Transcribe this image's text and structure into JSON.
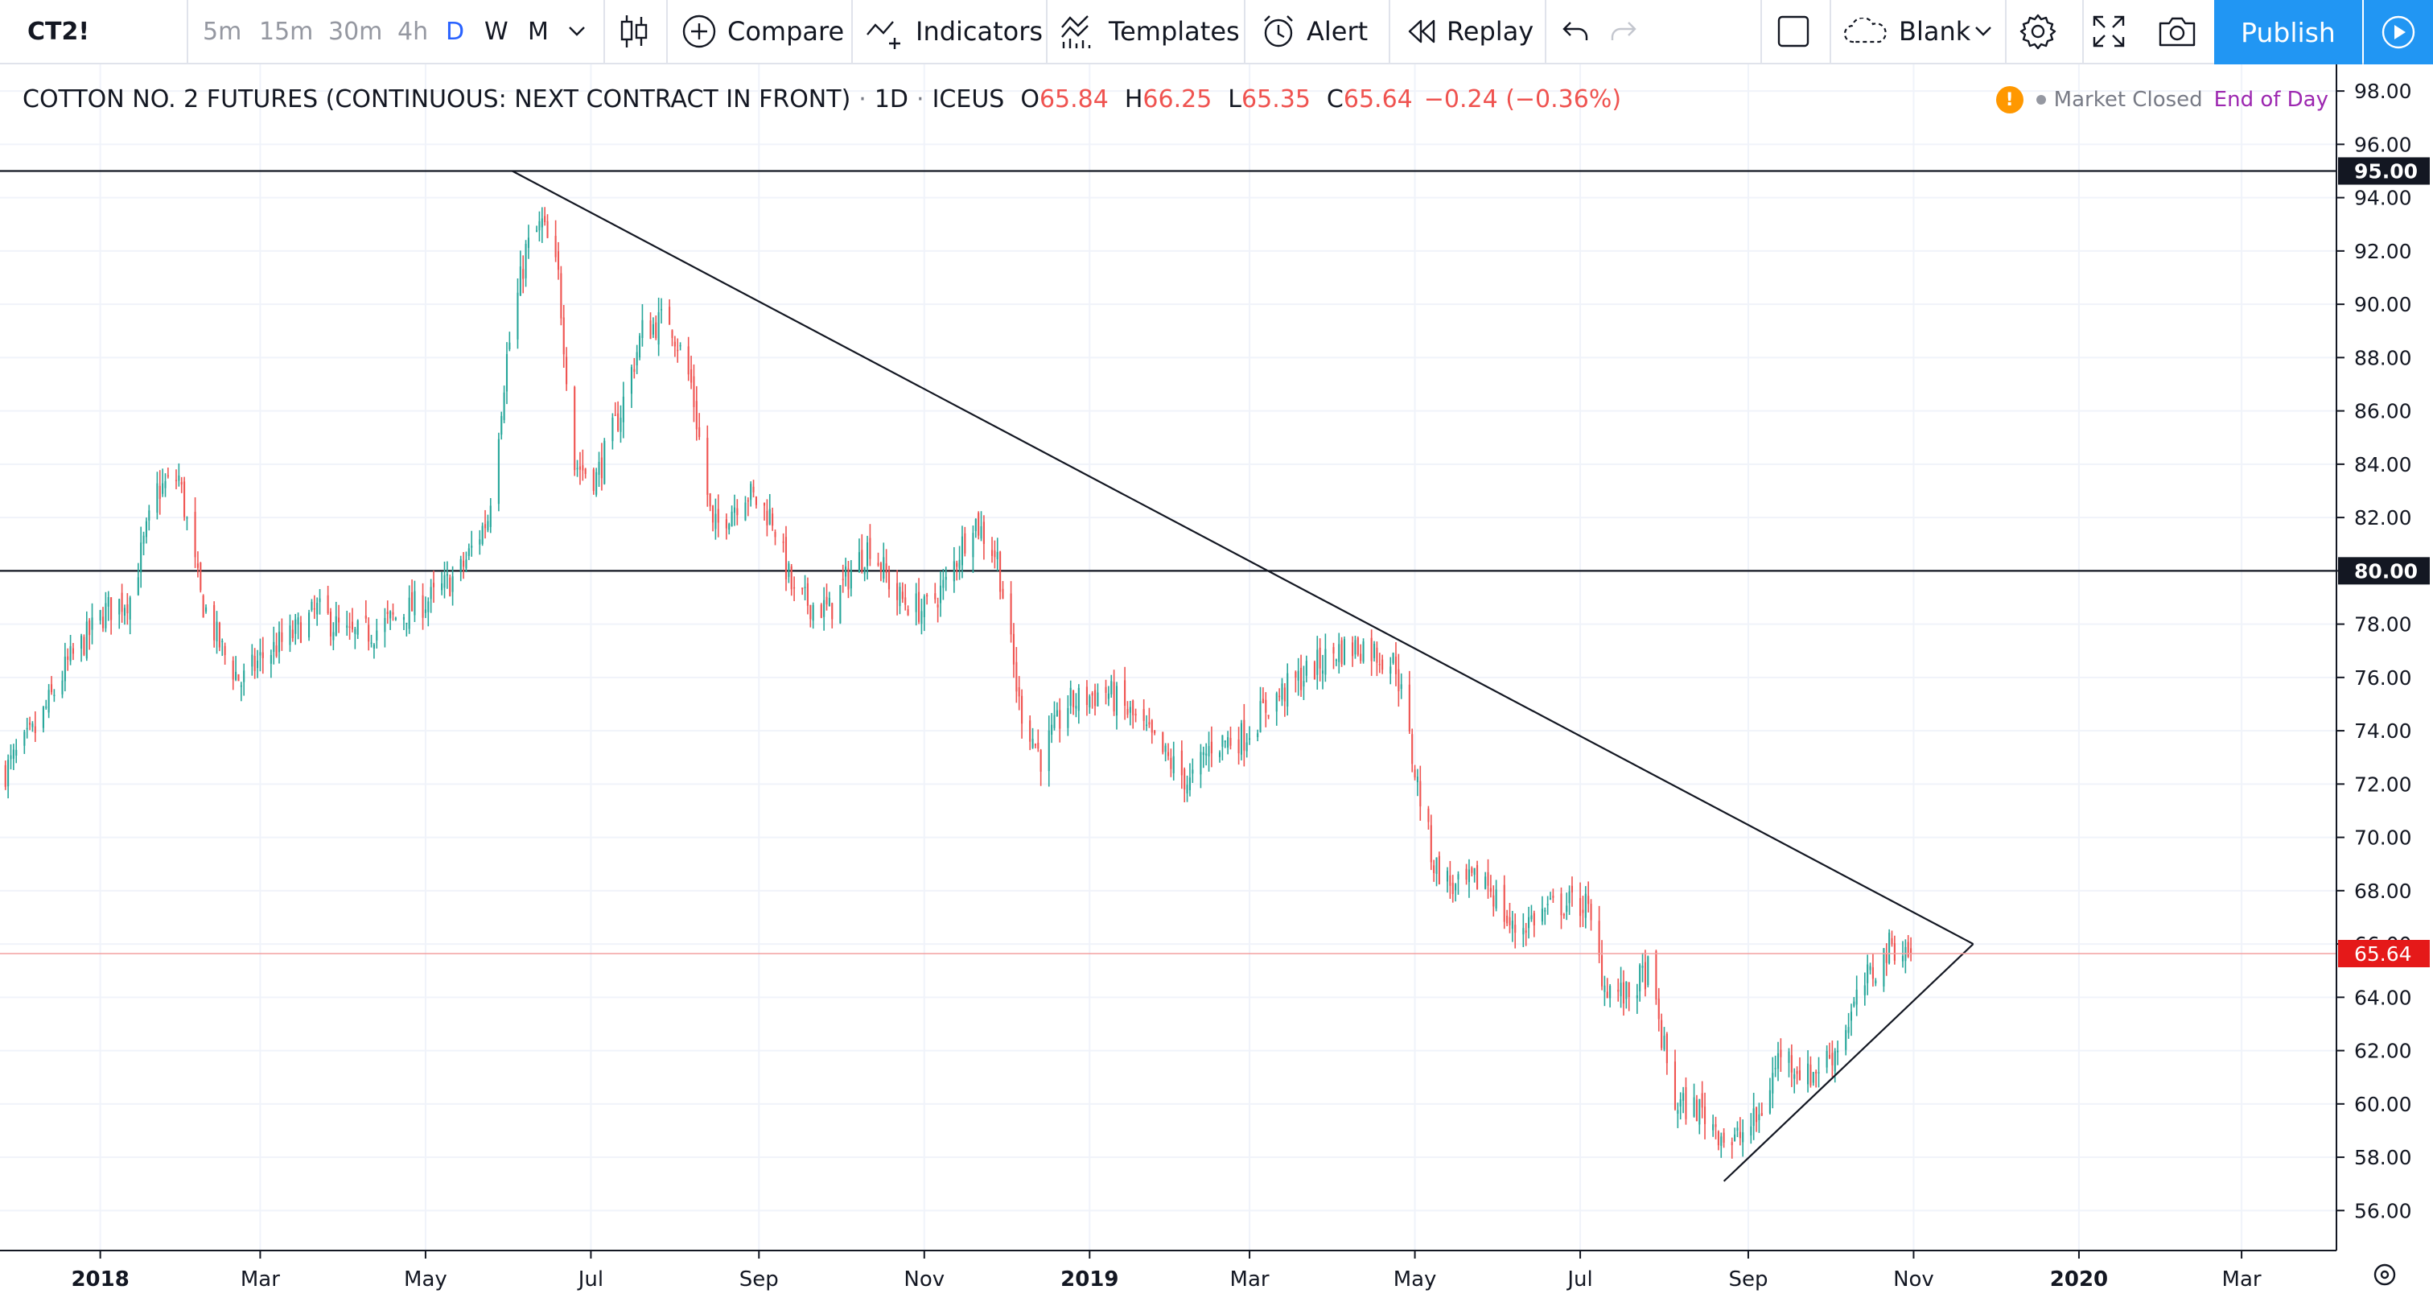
{
  "toolbar": {
    "symbol": "CT2!",
    "intervals": [
      "5m",
      "15m",
      "30m",
      "4h",
      "D",
      "W",
      "M"
    ],
    "compare_label": "Compare",
    "indicators_label": "Indicators",
    "templates_label": "Templates",
    "alert_label": "Alert",
    "replay_label": "Replay",
    "layout_label": "Blank",
    "publish_label": "Publish"
  },
  "legend": {
    "title": "COTTON NO. 2 FUTURES (CONTINUOUS: NEXT CONTRACT IN FRONT)",
    "interval": "1D",
    "exchange": "ICEUS",
    "open_key": "O",
    "open": "65.84",
    "high_key": "H",
    "high": "66.25",
    "low_key": "L",
    "low": "65.35",
    "close_key": "C",
    "close": "65.64",
    "change": "−0.24 (−0.36%)"
  },
  "status": {
    "warning": "!",
    "market": "Market Closed",
    "session": "End of Day"
  },
  "colors": {
    "up": "#26a69a",
    "down": "#ef5350",
    "accent": "#2196f3",
    "last_price_line": "#f3a0a0"
  },
  "chart_data": {
    "type": "candlestick",
    "symbol": "CT2!",
    "ylim": [
      54.5,
      99.0
    ],
    "y_ticks": [
      "56.00",
      "58.00",
      "60.00",
      "62.00",
      "64.00",
      "66.00",
      "68.00",
      "70.00",
      "72.00",
      "74.00",
      "76.00",
      "78.00",
      "80.00",
      "82.00",
      "84.00",
      "86.00",
      "88.00",
      "90.00",
      "92.00",
      "94.00",
      "96.00",
      "98.00"
    ],
    "x_ticks": [
      {
        "label": "2018",
        "date": "2018-01-01"
      },
      {
        "label": "Mar",
        "date": "2018-03-01"
      },
      {
        "label": "May",
        "date": "2018-05-01"
      },
      {
        "label": "Jul",
        "date": "2018-07-01"
      },
      {
        "label": "Sep",
        "date": "2018-09-01"
      },
      {
        "label": "Nov",
        "date": "2018-11-01"
      },
      {
        "label": "2019",
        "date": "2019-01-01"
      },
      {
        "label": "Mar",
        "date": "2019-03-01"
      },
      {
        "label": "May",
        "date": "2019-05-01"
      },
      {
        "label": "Jul",
        "date": "2019-07-01"
      },
      {
        "label": "Sep",
        "date": "2019-09-01"
      },
      {
        "label": "Nov",
        "date": "2019-11-01"
      },
      {
        "label": "2020",
        "date": "2020-01-01"
      },
      {
        "label": "Mar",
        "date": "2020-03-01"
      }
    ],
    "x_range": [
      "2017-11-25",
      "2020-04-05"
    ],
    "close_path": [
      [
        "2017-11-27",
        72.5
      ],
      [
        "2017-12-08",
        74.0
      ],
      [
        "2017-12-20",
        76.5
      ],
      [
        "2018-01-03",
        78.5
      ],
      [
        "2018-01-12",
        79.0
      ],
      [
        "2018-01-22",
        83.0
      ],
      [
        "2018-01-30",
        83.5
      ],
      [
        "2018-02-07",
        79.0
      ],
      [
        "2018-02-15",
        77.0
      ],
      [
        "2018-02-22",
        75.8
      ],
      [
        "2018-03-02",
        76.8
      ],
      [
        "2018-03-12",
        77.5
      ],
      [
        "2018-03-22",
        78.5
      ],
      [
        "2018-04-03",
        77.5
      ],
      [
        "2018-04-13",
        77.8
      ],
      [
        "2018-04-24",
        78.5
      ],
      [
        "2018-05-04",
        79.0
      ],
      [
        "2018-05-14",
        80.0
      ],
      [
        "2018-05-24",
        82.0
      ],
      [
        "2018-05-31",
        88.0
      ],
      [
        "2018-06-07",
        92.0
      ],
      [
        "2018-06-13",
        93.0
      ],
      [
        "2018-06-19",
        91.0
      ],
      [
        "2018-06-25",
        84.0
      ],
      [
        "2018-07-03",
        83.5
      ],
      [
        "2018-07-12",
        86.0
      ],
      [
        "2018-07-20",
        89.0
      ],
      [
        "2018-07-30",
        89.5
      ],
      [
        "2018-08-07",
        87.0
      ],
      [
        "2018-08-15",
        81.5
      ],
      [
        "2018-08-27",
        83.0
      ],
      [
        "2018-09-06",
        82.0
      ],
      [
        "2018-09-14",
        79.0
      ],
      [
        "2018-09-27",
        78.5
      ],
      [
        "2018-10-05",
        80.0
      ],
      [
        "2018-10-12",
        81.0
      ],
      [
        "2018-10-22",
        79.0
      ],
      [
        "2018-11-01",
        78.5
      ],
      [
        "2018-11-09",
        79.5
      ],
      [
        "2018-11-19",
        82.0
      ],
      [
        "2018-11-28",
        80.5
      ],
      [
        "2018-12-06",
        75.0
      ],
      [
        "2018-12-14",
        73.0
      ],
      [
        "2018-12-24",
        75.0
      ],
      [
        "2019-01-07",
        75.5
      ],
      [
        "2019-01-17",
        74.5
      ],
      [
        "2019-01-29",
        73.0
      ],
      [
        "2019-02-07",
        72.0
      ],
      [
        "2019-02-15",
        73.5
      ],
      [
        "2019-02-27",
        73.8
      ],
      [
        "2019-03-08",
        75.0
      ],
      [
        "2019-03-20",
        76.0
      ],
      [
        "2019-04-02",
        77.0
      ],
      [
        "2019-04-12",
        77.2
      ],
      [
        "2019-04-24",
        76.5
      ],
      [
        "2019-04-30",
        73.0
      ],
      [
        "2019-05-08",
        69.0
      ],
      [
        "2019-05-16",
        68.0
      ],
      [
        "2019-05-27",
        68.5
      ],
      [
        "2019-06-06",
        66.5
      ],
      [
        "2019-06-14",
        67.0
      ],
      [
        "2019-06-24",
        67.5
      ],
      [
        "2019-07-03",
        67.5
      ],
      [
        "2019-07-10",
        64.5
      ],
      [
        "2019-07-18",
        64.0
      ],
      [
        "2019-07-26",
        65.0
      ],
      [
        "2019-08-05",
        60.0
      ],
      [
        "2019-08-14",
        59.8
      ],
      [
        "2019-08-26",
        58.5
      ],
      [
        "2019-09-05",
        59.5
      ],
      [
        "2019-09-13",
        62.0
      ],
      [
        "2019-09-23",
        61.0
      ],
      [
        "2019-10-03",
        62.0
      ],
      [
        "2019-10-14",
        64.5
      ],
      [
        "2019-10-24",
        66.0
      ],
      [
        "2019-10-31",
        65.64
      ]
    ],
    "drawings": [
      {
        "type": "horizontal_line",
        "price": 95.0,
        "label": "95.00"
      },
      {
        "type": "horizontal_line",
        "price": 80.0,
        "label": "80.00"
      },
      {
        "type": "trend_line",
        "from": [
          "2018-06-02",
          95.0
        ],
        "to": [
          "2019-11-23",
          66.0
        ]
      },
      {
        "type": "trend_line",
        "from": [
          "2019-08-23",
          57.1
        ],
        "to": [
          "2019-11-23",
          66.0
        ]
      }
    ],
    "last_price": {
      "value": 65.64,
      "label": "65.64"
    }
  }
}
